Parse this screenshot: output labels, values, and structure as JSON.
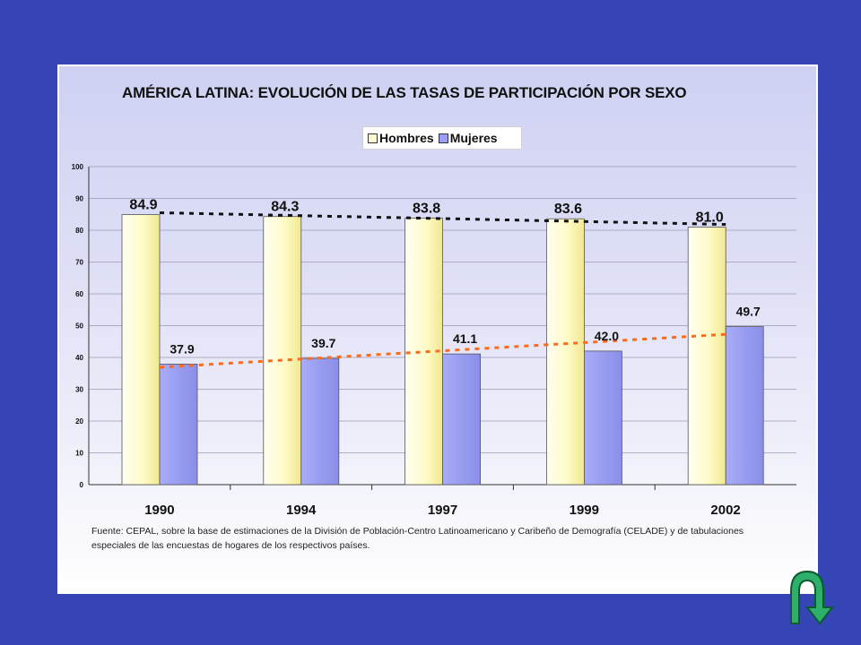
{
  "chart_data": {
    "type": "bar",
    "title": "AMÉRICA LATINA: EVOLUCIÓN DE LAS TASAS DE PARTICIPACIÓN POR SEXO",
    "categories": [
      "1990",
      "1994",
      "1997",
      "1999",
      "2002"
    ],
    "series": [
      {
        "name": "Hombres",
        "values": [
          84.9,
          84.3,
          83.8,
          83.6,
          81.0
        ],
        "labels": [
          "84.9",
          "84.3",
          "83.8",
          "83.6",
          "81.0"
        ],
        "color": "#fffbd0",
        "trendline_color": "#111111"
      },
      {
        "name": "Mujeres",
        "values": [
          37.9,
          39.7,
          41.1,
          42.0,
          49.7
        ],
        "labels": [
          "37.9",
          "39.7",
          "41.1",
          "42.0",
          "49.7"
        ],
        "color": "#9a9ef5",
        "trendline_color": "#ff6a1a"
      }
    ],
    "ylim": [
      0,
      100
    ],
    "yticks": [
      "0",
      "10",
      "20",
      "30",
      "40",
      "50",
      "60",
      "70",
      "80",
      "90",
      "100"
    ],
    "grid": true,
    "legend_position": "top-right",
    "trendlines": "dashed"
  },
  "source_note": "Fuente: CEPAL, sobre la base de estimaciones de la División de Población-Centro Latinoamericano y Caribeño de Demografía (CELADE) y de tabulaciones especiales de las encuestas de hogares de los respectivos países.",
  "background_color": "#3545b5",
  "nav": {
    "icon": "return-arrow-icon",
    "color": "#2fb06a"
  }
}
